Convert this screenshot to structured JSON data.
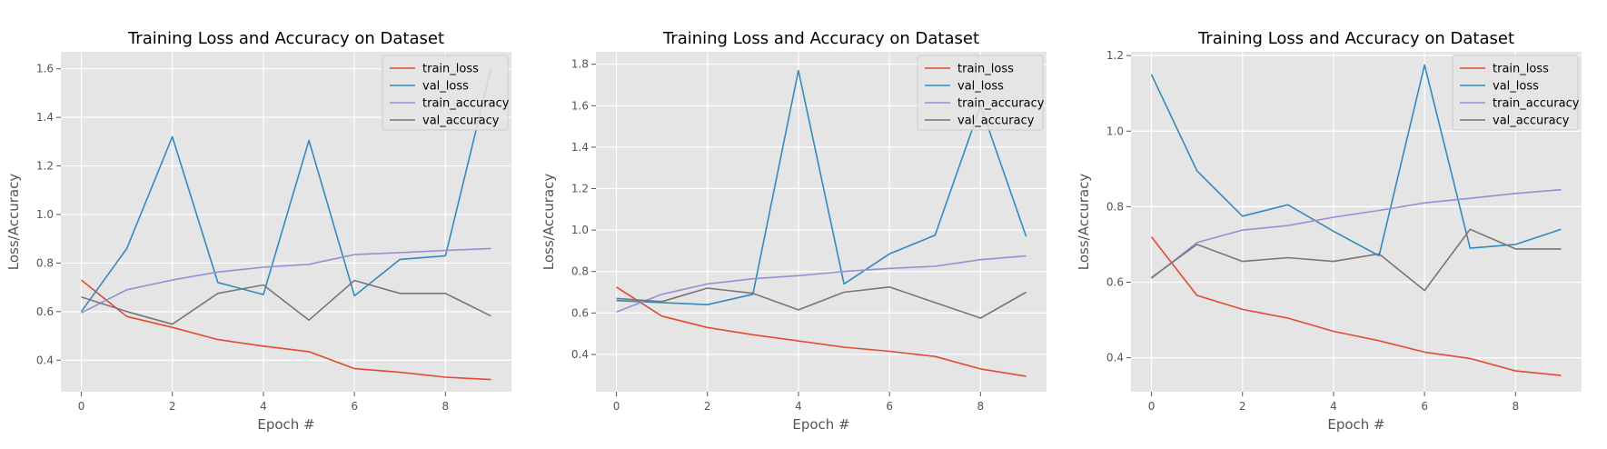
{
  "colors": {
    "train_loss": "#E24A33",
    "val_loss": "#348ABD",
    "train_accuracy": "#988ED5",
    "val_accuracy": "#777777",
    "axes_bg": "#E5E5E5",
    "grid": "#FFFFFF"
  },
  "chart_data": [
    {
      "type": "line",
      "title": "Training Loss and Accuracy on Dataset",
      "xlabel": "Epoch #",
      "ylabel": "Loss/Accuracy",
      "xlim": [
        -0.45,
        9.45
      ],
      "ylim": [
        0.27,
        1.67
      ],
      "xticks": [
        0,
        2,
        4,
        6,
        8
      ],
      "xtick_labels": [
        "0",
        "2",
        "4",
        "6",
        "8"
      ],
      "yticks": [
        0.4,
        0.6,
        0.8,
        1.0,
        1.2,
        1.4,
        1.6
      ],
      "ytick_labels": [
        "0.4",
        "0.6",
        "0.8",
        "1.0",
        "1.2",
        "1.4",
        "1.6"
      ],
      "grid": true,
      "legend_position": "top-right",
      "x": [
        0,
        1,
        2,
        3,
        4,
        5,
        6,
        7,
        8,
        9
      ],
      "series": [
        {
          "name": "train_loss",
          "values": [
            0.73,
            0.58,
            0.535,
            0.485,
            0.458,
            0.435,
            0.365,
            0.35,
            0.33,
            0.32
          ]
        },
        {
          "name": "val_loss",
          "values": [
            0.6,
            0.86,
            1.32,
            0.72,
            0.67,
            1.305,
            0.665,
            0.815,
            0.83,
            1.6
          ]
        },
        {
          "name": "train_accuracy",
          "values": [
            0.595,
            0.69,
            0.73,
            0.763,
            0.783,
            0.795,
            0.835,
            0.843,
            0.852,
            0.86
          ]
        },
        {
          "name": "val_accuracy",
          "values": [
            0.66,
            0.6,
            0.548,
            0.675,
            0.71,
            0.565,
            0.728,
            0.675,
            0.675,
            0.582
          ]
        }
      ]
    },
    {
      "type": "line",
      "title": "Training Loss and Accuracy on Dataset",
      "xlabel": "Epoch #",
      "ylabel": "Loss/Accuracy",
      "xlim": [
        -0.45,
        9.45
      ],
      "ylim": [
        0.22,
        1.86
      ],
      "xticks": [
        0,
        2,
        4,
        6,
        8
      ],
      "xtick_labels": [
        "0",
        "2",
        "4",
        "6",
        "8"
      ],
      "yticks": [
        0.4,
        0.6,
        0.8,
        1.0,
        1.2,
        1.4,
        1.6,
        1.8
      ],
      "ytick_labels": [
        "0.4",
        "0.6",
        "0.8",
        "1.0",
        "1.2",
        "1.4",
        "1.6",
        "1.8"
      ],
      "grid": true,
      "legend_position": "top-right",
      "x": [
        0,
        1,
        2,
        3,
        4,
        5,
        6,
        7,
        8,
        9
      ],
      "series": [
        {
          "name": "train_loss",
          "values": [
            0.725,
            0.585,
            0.53,
            0.495,
            0.465,
            0.435,
            0.415,
            0.39,
            0.33,
            0.295
          ]
        },
        {
          "name": "val_loss",
          "values": [
            0.66,
            0.65,
            0.64,
            0.69,
            1.77,
            0.74,
            0.885,
            0.975,
            1.6,
            0.97
          ]
        },
        {
          "name": "train_accuracy",
          "values": [
            0.605,
            0.69,
            0.74,
            0.765,
            0.78,
            0.8,
            0.815,
            0.825,
            0.857,
            0.875
          ]
        },
        {
          "name": "val_accuracy",
          "values": [
            0.67,
            0.655,
            0.72,
            0.695,
            0.615,
            0.7,
            0.725,
            0.65,
            0.575,
            0.7
          ]
        }
      ]
    },
    {
      "type": "line",
      "title": "Training Loss and Accuracy on Dataset",
      "xlabel": "Epoch #",
      "ylabel": "Loss/Accuracy",
      "xlim": [
        -0.45,
        9.45
      ],
      "ylim": [
        0.31,
        1.21
      ],
      "xticks": [
        0,
        2,
        4,
        6,
        8
      ],
      "xtick_labels": [
        "0",
        "2",
        "4",
        "6",
        "8"
      ],
      "yticks": [
        0.4,
        0.6,
        0.8,
        1.0,
        1.2
      ],
      "ytick_labels": [
        "0.4",
        "0.6",
        "0.8",
        "1.0",
        "1.2"
      ],
      "grid": true,
      "legend_position": "top-right",
      "x": [
        0,
        1,
        2,
        3,
        4,
        5,
        6,
        7,
        8,
        9
      ],
      "series": [
        {
          "name": "train_loss",
          "values": [
            0.72,
            0.565,
            0.528,
            0.505,
            0.47,
            0.445,
            0.415,
            0.398,
            0.365,
            0.353
          ]
        },
        {
          "name": "val_loss",
          "values": [
            1.15,
            0.895,
            0.775,
            0.805,
            0.735,
            0.67,
            1.175,
            0.69,
            0.7,
            0.74
          ]
        },
        {
          "name": "train_accuracy",
          "values": [
            0.61,
            0.705,
            0.738,
            0.75,
            0.772,
            0.79,
            0.81,
            0.822,
            0.835,
            0.845
          ]
        },
        {
          "name": "val_accuracy",
          "values": [
            0.612,
            0.7,
            0.655,
            0.665,
            0.655,
            0.675,
            0.578,
            0.74,
            0.688,
            0.688
          ]
        }
      ]
    }
  ]
}
